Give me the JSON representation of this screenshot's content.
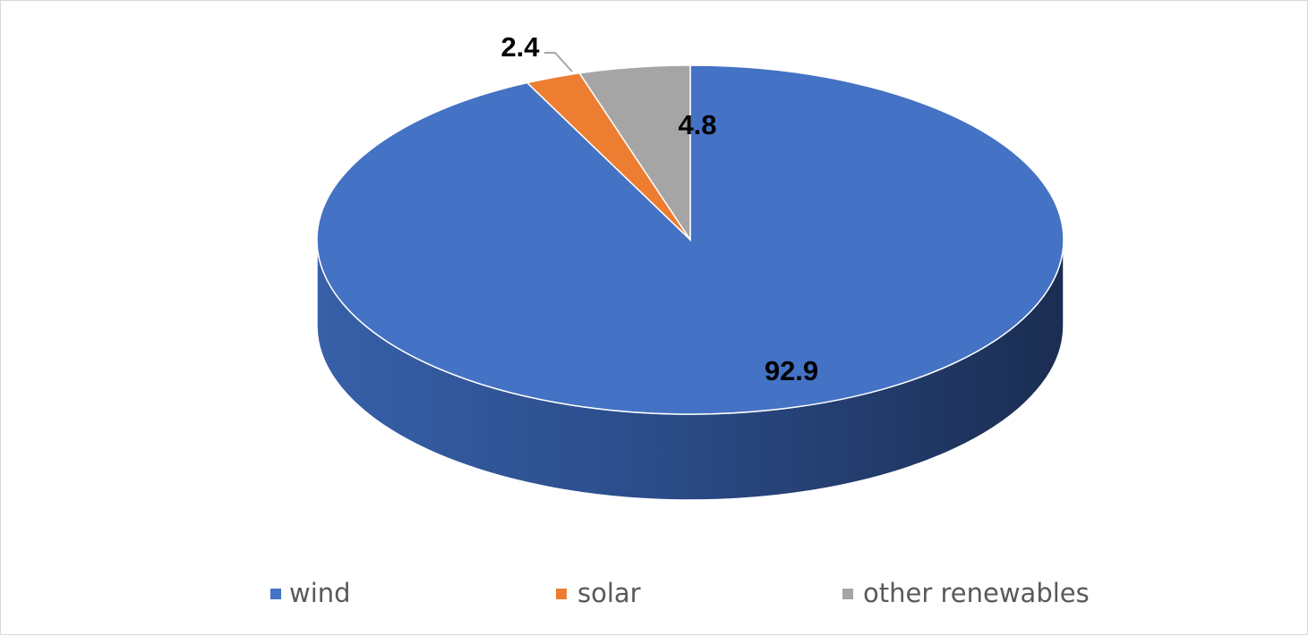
{
  "chart_data": {
    "type": "pie",
    "title": "",
    "categories": [
      "wind",
      "solar",
      "other renewables"
    ],
    "values": [
      92.9,
      2.4,
      4.8
    ],
    "colors": {
      "wind": "#4472C4",
      "solar": "#ED7D31",
      "other renewables": "#A5A5A5"
    },
    "data_labels": [
      "92.9",
      "2.4",
      "4.8"
    ],
    "legend_position": "bottom",
    "style": "3d"
  }
}
